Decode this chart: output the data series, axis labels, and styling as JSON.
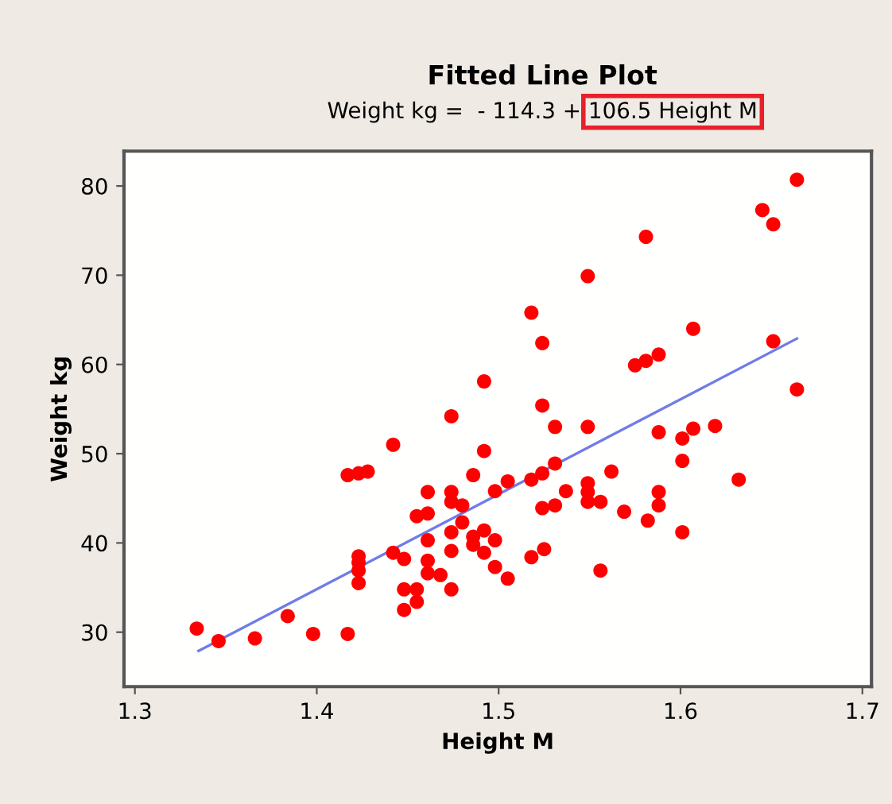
{
  "chart_data": {
    "type": "scatter",
    "title": "Fitted Line Plot",
    "subtitle": "Weight kg =  - 114.3 + 106.5 Height M",
    "xlabel": "Height M",
    "ylabel": "Weight kg",
    "xlim": [
      1.294,
      1.705
    ],
    "ylim": [
      23.9,
      83.9
    ],
    "xticks": [
      1.3,
      1.4,
      1.5,
      1.6,
      1.7
    ],
    "yticks": [
      30,
      40,
      50,
      60,
      70,
      80
    ],
    "grid": false,
    "legend": false,
    "series": [
      {
        "marker": "circle",
        "color": "#ff0000",
        "x": [
          1.334,
          1.346,
          1.366,
          1.384,
          1.398,
          1.417,
          1.417,
          1.423,
          1.428,
          1.442,
          1.423,
          1.423,
          1.423,
          1.423,
          1.442,
          1.448,
          1.448,
          1.455,
          1.448,
          1.455,
          1.455,
          1.461,
          1.461,
          1.461,
          1.461,
          1.461,
          1.468,
          1.474,
          1.474,
          1.474,
          1.474,
          1.474,
          1.474,
          1.48,
          1.48,
          1.486,
          1.486,
          1.486,
          1.492,
          1.492,
          1.492,
          1.492,
          1.498,
          1.498,
          1.498,
          1.505,
          1.505,
          1.518,
          1.518,
          1.518,
          1.524,
          1.524,
          1.524,
          1.524,
          1.525,
          1.531,
          1.531,
          1.531,
          1.537,
          1.549,
          1.549,
          1.549,
          1.549,
          1.549,
          1.556,
          1.556,
          1.562,
          1.569,
          1.575,
          1.581,
          1.581,
          1.582,
          1.588,
          1.588,
          1.588,
          1.588,
          1.601,
          1.601,
          1.601,
          1.607,
          1.607,
          1.619,
          1.632,
          1.645,
          1.651,
          1.651,
          1.664,
          1.664
        ],
        "values": [
          30.4,
          29.0,
          29.3,
          31.8,
          29.8,
          29.8,
          47.6,
          47.8,
          48.0,
          51.0,
          38.5,
          37.8,
          36.9,
          35.5,
          38.9,
          38.2,
          34.8,
          34.8,
          32.5,
          33.4,
          43.0,
          43.3,
          45.7,
          40.3,
          38.0,
          36.6,
          36.4,
          45.7,
          54.2,
          41.2,
          39.1,
          34.8,
          44.6,
          44.2,
          42.3,
          47.6,
          40.7,
          39.8,
          50.3,
          41.4,
          38.9,
          58.1,
          45.8,
          40.3,
          37.3,
          46.9,
          36.0,
          65.8,
          47.1,
          38.4,
          62.4,
          55.4,
          47.8,
          43.9,
          39.3,
          53.0,
          48.9,
          44.2,
          45.8,
          69.9,
          53.0,
          46.7,
          45.7,
          44.6,
          44.6,
          36.9,
          48.0,
          43.5,
          59.9,
          60.4,
          74.3,
          42.5,
          61.1,
          52.4,
          45.7,
          44.2,
          51.7,
          49.2,
          41.2,
          64.0,
          52.8,
          53.1,
          47.1,
          77.3,
          75.7,
          62.6,
          80.7,
          57.2
        ]
      },
      {
        "type": "line",
        "color": "#6f7ce8",
        "line_style": "solid",
        "x": [
          1.335,
          1.664
        ],
        "values": [
          27.9,
          62.9
        ]
      }
    ]
  }
}
